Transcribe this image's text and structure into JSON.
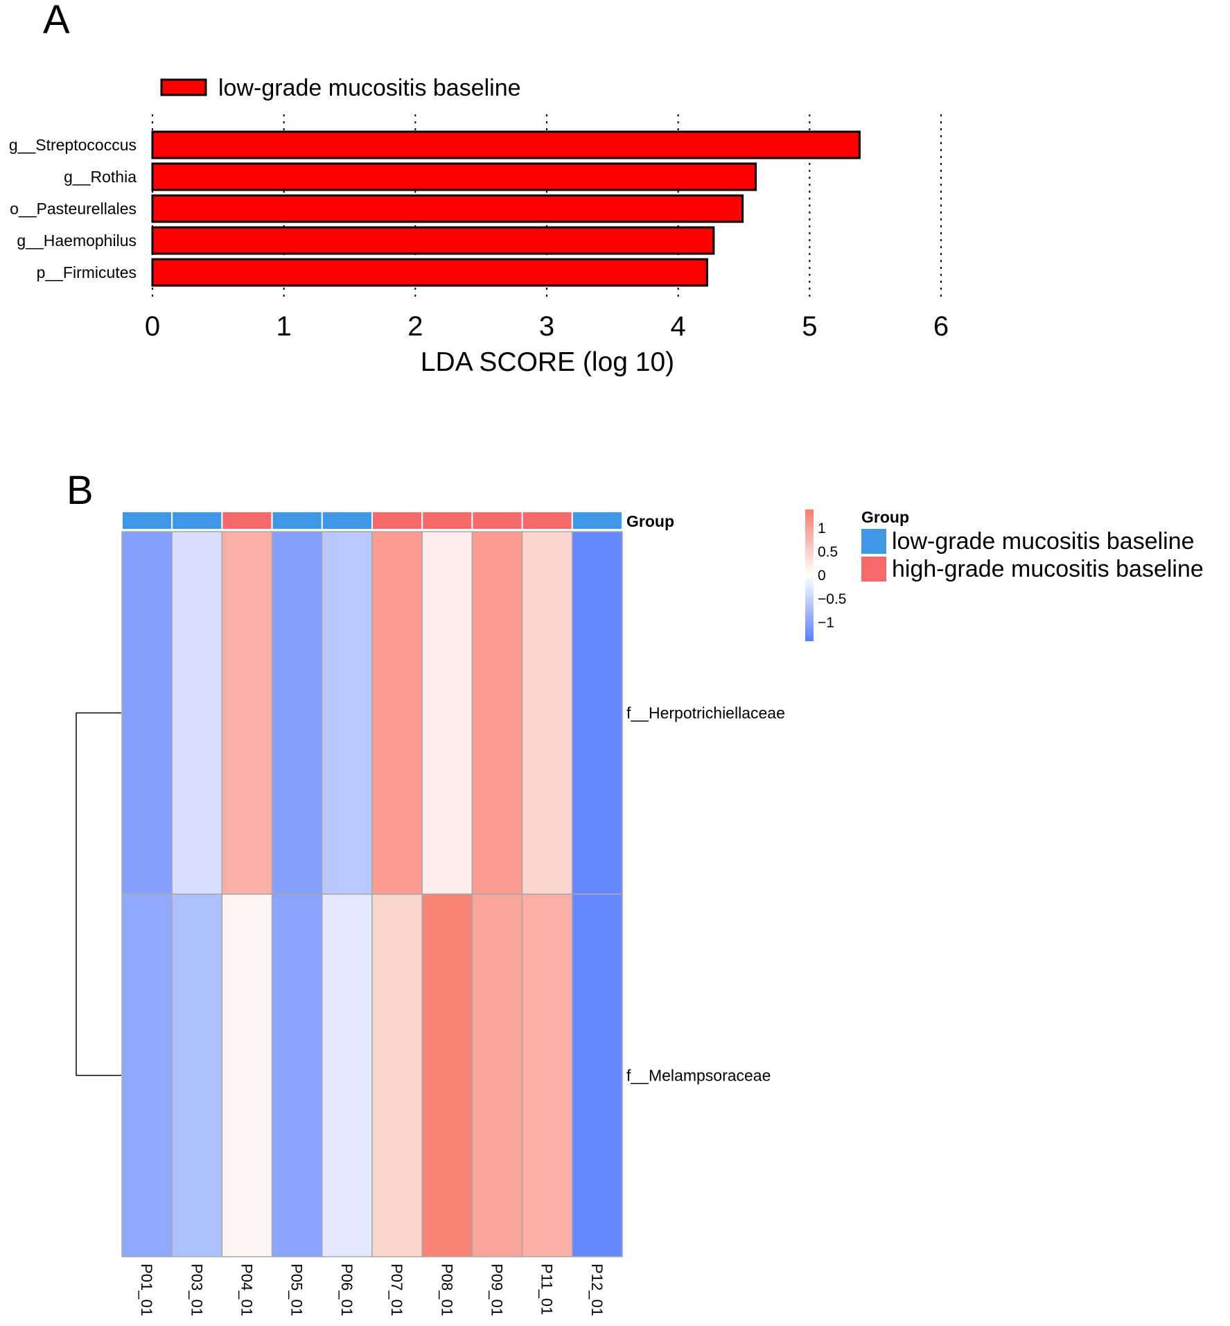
{
  "panel_labels": {
    "a": "A",
    "b": "B"
  },
  "chart_data": [
    {
      "type": "bar",
      "orientation": "horizontal",
      "legend": {
        "label": "low-grade mucositis baseline",
        "color": "#ff0000",
        "placement": "top"
      },
      "categories": [
        "g__Streptococcus",
        "g__Rothia",
        "o__Pasteurellales",
        "g__Haemophilus",
        "p__Firmicutes"
      ],
      "values": [
        5.38,
        4.59,
        4.49,
        4.27,
        4.22
      ],
      "xlabel": "LDA SCORE (log 10)",
      "xlim": [
        0,
        6
      ],
      "xticks": [
        "0",
        "1",
        "2",
        "3",
        "4",
        "5",
        "6"
      ],
      "grid": "dotted vertical",
      "bar_color": "#ff0000"
    },
    {
      "type": "heatmap",
      "columns": [
        "P01_01",
        "P03_01",
        "P04_01",
        "P05_01",
        "P06_01",
        "P07_01",
        "P08_01",
        "P09_01",
        "P11_01",
        "P12_01"
      ],
      "rows": [
        "f__Herpotrichiellaceae",
        "f__Melampsoraceae"
      ],
      "values": [
        [
          -1.05,
          -0.35,
          0.85,
          -1.05,
          -0.6,
          1.05,
          0.2,
          1.05,
          0.45,
          -1.3
        ],
        [
          -0.95,
          -0.7,
          0.1,
          -1.0,
          -0.25,
          0.45,
          1.3,
          0.95,
          0.85,
          -1.3
        ]
      ],
      "group_annotation": {
        "title": "Group",
        "values": [
          "low-grade mucositis baseline",
          "low-grade mucositis baseline",
          "high-grade mucositis baseline",
          "low-grade mucositis baseline",
          "low-grade mucositis baseline",
          "high-grade mucositis baseline",
          "high-grade mucositis baseline",
          "high-grade mucositis baseline",
          "high-grade mucositis baseline",
          "low-grade mucositis baseline"
        ]
      },
      "legend": {
        "title": "Group",
        "items": [
          {
            "label": "low-grade mucositis baseline",
            "color": "#3f97e8"
          },
          {
            "label": "high-grade mucositis baseline",
            "color": "#f8696b"
          }
        ]
      },
      "color_scale": {
        "ticks": [
          "1",
          "0.5",
          "0",
          "−0.5",
          "−1"
        ],
        "tick_values": [
          1,
          0.5,
          0,
          -0.5,
          -1
        ],
        "range": [
          -1.4,
          1.4
        ],
        "low_color": "#5b80ff",
        "mid_color": "#ffffff",
        "high_color": "#f87c6b"
      },
      "row_dendrogram": true
    }
  ]
}
